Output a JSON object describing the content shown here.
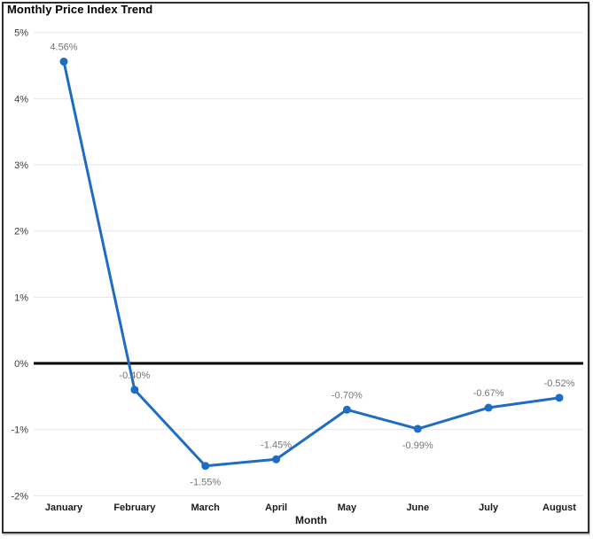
{
  "chart_data": {
    "type": "line",
    "title": "Monthly Price Index Trend",
    "xlabel": "Month",
    "categories": [
      "January",
      "February",
      "March",
      "April",
      "May",
      "June",
      "July",
      "August"
    ],
    "series": [
      {
        "name": "Monthly Price Index",
        "values": [
          4.56,
          -0.4,
          -1.55,
          -1.45,
          -0.7,
          -0.99,
          -0.67,
          -0.52
        ]
      }
    ],
    "data_labels": [
      "4.56%",
      "-0.40%",
      "-1.55%",
      "-1.45%",
      "-0.70%",
      "-0.99%",
      "-0.67%",
      "-0.52%"
    ],
    "label_position": [
      "above",
      "above",
      "below",
      "above",
      "above",
      "below",
      "above",
      "above"
    ],
    "ylim": [
      -2,
      5
    ],
    "ytick_values": [
      5,
      4,
      3,
      2,
      1,
      0,
      -1,
      -2
    ],
    "ytick_labels": [
      "5%",
      "4%",
      "3%",
      "2%",
      "1%",
      "0%",
      "-1%",
      "-2%"
    ],
    "grid": true,
    "zero_line": true,
    "legend": "none",
    "colors": {
      "line": "#1f6cc5",
      "marker": "#1f6cc5",
      "zero_line": "#000000",
      "gridline": "#e6e6e6",
      "data_label": "#767676",
      "ytick_label": "#3a3a3a",
      "xtick_label": "#1a1a1a",
      "title": "#000000",
      "frame_border": "#2e2e2e"
    }
  }
}
